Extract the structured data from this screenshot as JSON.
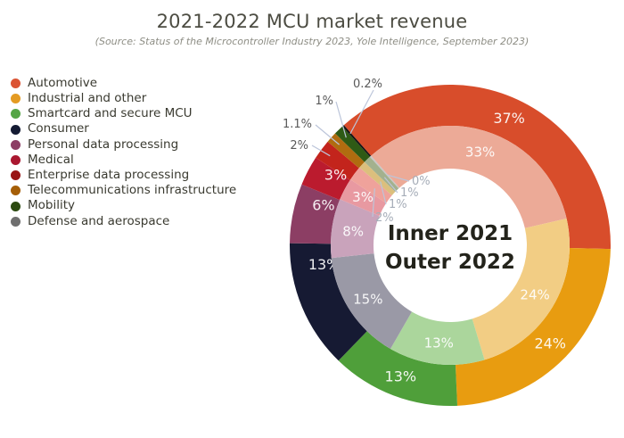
{
  "chart_data": {
    "type": "donut",
    "title": "2021-2022 MCU market revenue",
    "subtitle": "(Source: Status of the Microcontroller Industry 2023, Yole Intelligence, September 2023)",
    "center_text": [
      "Inner 2021",
      "Outer 2022"
    ],
    "start_angle_deg": -41.5,
    "legend_position": "left",
    "categories": [
      "Automotive",
      "Industrial and other",
      "Smartcard and secure MCU",
      "Consumer",
      "Personal data processing",
      "Medical",
      "Enterprise data processing",
      "Telecommunications infrastructure",
      "Mobility",
      "Defense and aerospace"
    ],
    "series": [
      {
        "name": "2022",
        "ring": "outer",
        "values": [
          37,
          24,
          13,
          13,
          6,
          3,
          2,
          1.1,
          1,
          0.2
        ],
        "labels": [
          "37%",
          "24%",
          "13%",
          "13%",
          "6%",
          "3%",
          "2%",
          "1.1%",
          "1%",
          "0.2%"
        ],
        "colors": [
          "#d84d2b",
          "#e89c10",
          "#4f9f3a",
          "#161a33",
          "#8c3e64",
          "#bb1b2e",
          "#c3241c",
          "#b06c10",
          "#2e5a15",
          "#141414"
        ]
      },
      {
        "name": "2021",
        "ring": "inner",
        "values": [
          33,
          24,
          13,
          15,
          8,
          3,
          2,
          1,
          1,
          0.2
        ],
        "labels": [
          "33%",
          "24%",
          "13%",
          "15%",
          "8%",
          "3%",
          "2%",
          "1%",
          "1%",
          "0%"
        ],
        "colors": [
          "#ecaa97",
          "#f2cd84",
          "#abd69c",
          "#9a99a6",
          "#c9a3bb",
          "#e899a1",
          "#efa29b",
          "#dcbf7d",
          "#a3b18e",
          "#c6c6c6"
        ]
      }
    ],
    "legend": {
      "items": [
        {
          "label": "Automotive",
          "color": "#db5434"
        },
        {
          "label": "Industrial and other",
          "color": "#e49b23"
        },
        {
          "label": "Smartcard and secure MCU",
          "color": "#55a546"
        },
        {
          "label": "Consumer",
          "color": "#141b33"
        },
        {
          "label": "Personal data processing",
          "color": "#8c3e64"
        },
        {
          "label": "Medical",
          "color": "#aa1830"
        },
        {
          "label": "Enterprise data processing",
          "color": "#991414"
        },
        {
          "label": "Telecommunications infrastructure",
          "color": "#a55e07"
        },
        {
          "label": "Mobility",
          "color": "#2c4a10"
        },
        {
          "label": "Defense and aerospace",
          "color": "#6f6f6f"
        }
      ]
    },
    "style": {
      "background": "#ffffff",
      "title_color": "#4c4c42",
      "subtitle_color": "#8e8e85",
      "legend_text_color": "#3a3a30",
      "center_text_color": "#23231b",
      "inside_label_color": "#ffffff",
      "outside_label_color": "#5a5a5a",
      "center_side_label_color": "#a6adb8",
      "leader_line_color": "#bcc5da"
    }
  }
}
